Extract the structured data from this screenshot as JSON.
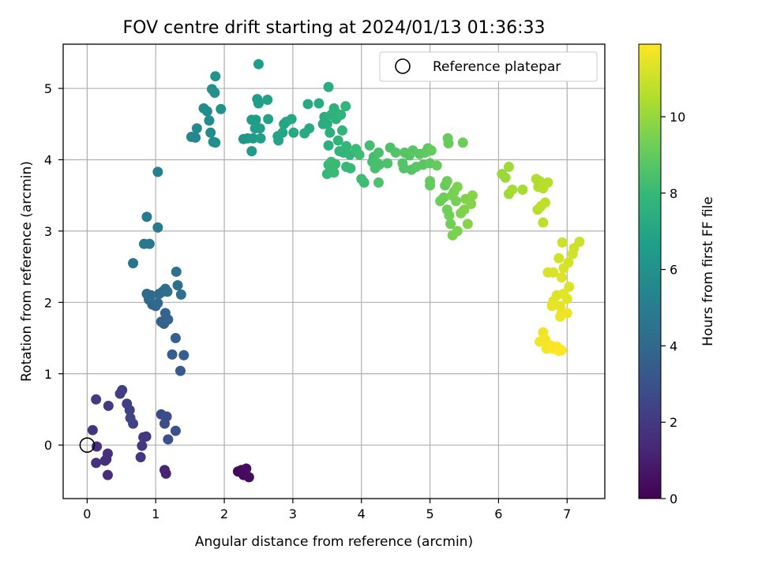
{
  "chart_data": {
    "type": "scatter",
    "title": "FOV centre drift starting at 2024/01/13 01:36:33",
    "xlabel": "Angular distance from reference (arcmin)",
    "ylabel": "Rotation from reference (arcmin)",
    "xlim": [
      -0.35,
      7.55
    ],
    "ylim": [
      -0.75,
      5.62
    ],
    "xticks": [
      0,
      1,
      2,
      3,
      4,
      5,
      6,
      7
    ],
    "yticks": [
      0,
      1,
      2,
      3,
      4,
      5
    ],
    "grid": true,
    "legend": {
      "position": "top-right",
      "entries": [
        "Reference platepar"
      ]
    },
    "reference_point": {
      "x": 0,
      "y": 0
    },
    "colorbar": {
      "label": "Hours from first FF file",
      "colormap": "viridis",
      "range": [
        0,
        11.9
      ],
      "ticks": [
        0,
        2,
        4,
        6,
        8,
        10
      ]
    },
    "colormap_stops": [
      "#440154",
      "#482878",
      "#3e4989",
      "#31688e",
      "#26828e",
      "#1f9e89",
      "#35b779",
      "#6ece58",
      "#b5de2b",
      "#fde725"
    ],
    "points": [
      {
        "x": 2.2,
        "y": -0.37,
        "h": 0.2
      },
      {
        "x": 2.25,
        "y": -0.35,
        "h": 0.3
      },
      {
        "x": 2.28,
        "y": -0.42,
        "h": 0.3
      },
      {
        "x": 2.32,
        "y": -0.33,
        "h": 0.4
      },
      {
        "x": 2.36,
        "y": -0.45,
        "h": 0.4
      },
      {
        "x": 1.13,
        "y": -0.35,
        "h": 1.2
      },
      {
        "x": 1.15,
        "y": -0.4,
        "h": 1.2
      },
      {
        "x": 0.3,
        "y": -0.42,
        "h": 1.5
      },
      {
        "x": 0.28,
        "y": -0.2,
        "h": 1.5
      },
      {
        "x": 0.3,
        "y": -0.12,
        "h": 1.6
      },
      {
        "x": 0.26,
        "y": -0.22,
        "h": 1.6
      },
      {
        "x": 0.13,
        "y": -0.25,
        "h": 1.7
      },
      {
        "x": 0.14,
        "y": -0.02,
        "h": 1.7
      },
      {
        "x": 0.08,
        "y": 0.21,
        "h": 1.8
      },
      {
        "x": 0.78,
        "y": -0.17,
        "h": 1.9
      },
      {
        "x": 0.8,
        "y": -0.01,
        "h": 1.9
      },
      {
        "x": 0.82,
        "y": 0.11,
        "h": 2.0
      },
      {
        "x": 0.86,
        "y": 0.12,
        "h": 2.0
      },
      {
        "x": 0.13,
        "y": 0.64,
        "h": 2.1
      },
      {
        "x": 0.31,
        "y": 0.55,
        "h": 2.1
      },
      {
        "x": 0.48,
        "y": 0.72,
        "h": 2.2
      },
      {
        "x": 0.51,
        "y": 0.77,
        "h": 2.2
      },
      {
        "x": 0.58,
        "y": 0.58,
        "h": 2.3
      },
      {
        "x": 0.62,
        "y": 0.49,
        "h": 2.3
      },
      {
        "x": 0.63,
        "y": 0.38,
        "h": 2.4
      },
      {
        "x": 0.67,
        "y": 0.3,
        "h": 2.4
      },
      {
        "x": 1.08,
        "y": 0.43,
        "h": 2.7
      },
      {
        "x": 1.16,
        "y": 0.4,
        "h": 2.8
      },
      {
        "x": 1.13,
        "y": 0.3,
        "h": 2.8
      },
      {
        "x": 1.18,
        "y": 0.08,
        "h": 2.9
      },
      {
        "x": 1.29,
        "y": 0.2,
        "h": 3.0
      },
      {
        "x": 1.36,
        "y": 1.04,
        "h": 3.4
      },
      {
        "x": 1.41,
        "y": 1.26,
        "h": 3.5
      },
      {
        "x": 1.24,
        "y": 1.27,
        "h": 3.5
      },
      {
        "x": 1.29,
        "y": 1.5,
        "h": 3.6
      },
      {
        "x": 1.08,
        "y": 1.73,
        "h": 3.7
      },
      {
        "x": 1.12,
        "y": 1.7,
        "h": 3.7
      },
      {
        "x": 1.18,
        "y": 1.76,
        "h": 3.8
      },
      {
        "x": 1.14,
        "y": 1.85,
        "h": 3.8
      },
      {
        "x": 1.0,
        "y": 1.95,
        "h": 3.9
      },
      {
        "x": 0.95,
        "y": 1.97,
        "h": 3.9
      },
      {
        "x": 1.03,
        "y": 1.99,
        "h": 4.0
      },
      {
        "x": 0.9,
        "y": 2.04,
        "h": 4.0
      },
      {
        "x": 0.87,
        "y": 2.12,
        "h": 4.0
      },
      {
        "x": 0.93,
        "y": 2.1,
        "h": 4.1
      },
      {
        "x": 1.05,
        "y": 2.12,
        "h": 4.1
      },
      {
        "x": 1.1,
        "y": 2.15,
        "h": 4.2
      },
      {
        "x": 1.14,
        "y": 2.19,
        "h": 4.2
      },
      {
        "x": 1.17,
        "y": 2.15,
        "h": 4.3
      },
      {
        "x": 1.37,
        "y": 2.11,
        "h": 4.3
      },
      {
        "x": 1.32,
        "y": 2.24,
        "h": 4.3
      },
      {
        "x": 1.3,
        "y": 2.43,
        "h": 4.4
      },
      {
        "x": 0.67,
        "y": 2.55,
        "h": 4.6
      },
      {
        "x": 0.83,
        "y": 2.82,
        "h": 4.8
      },
      {
        "x": 0.91,
        "y": 2.82,
        "h": 4.8
      },
      {
        "x": 1.03,
        "y": 3.05,
        "h": 4.9
      },
      {
        "x": 0.87,
        "y": 3.2,
        "h": 4.9
      },
      {
        "x": 1.03,
        "y": 3.83,
        "h": 5.2
      },
      {
        "x": 1.52,
        "y": 4.32,
        "h": 5.5
      },
      {
        "x": 1.58,
        "y": 4.31,
        "h": 5.5
      },
      {
        "x": 1.6,
        "y": 4.44,
        "h": 5.6
      },
      {
        "x": 1.7,
        "y": 4.72,
        "h": 5.7
      },
      {
        "x": 1.75,
        "y": 4.68,
        "h": 5.7
      },
      {
        "x": 1.78,
        "y": 4.55,
        "h": 5.8
      },
      {
        "x": 1.8,
        "y": 4.38,
        "h": 5.8
      },
      {
        "x": 1.84,
        "y": 4.25,
        "h": 5.9
      },
      {
        "x": 1.87,
        "y": 4.24,
        "h": 5.9
      },
      {
        "x": 1.82,
        "y": 4.99,
        "h": 6.0
      },
      {
        "x": 1.86,
        "y": 4.94,
        "h": 6.0
      },
      {
        "x": 1.87,
        "y": 5.17,
        "h": 6.1
      },
      {
        "x": 1.95,
        "y": 4.71,
        "h": 6.1
      },
      {
        "x": 2.28,
        "y": 4.29,
        "h": 6.3
      },
      {
        "x": 2.34,
        "y": 4.3,
        "h": 6.3
      },
      {
        "x": 2.4,
        "y": 4.12,
        "h": 6.4
      },
      {
        "x": 2.42,
        "y": 4.3,
        "h": 6.4
      },
      {
        "x": 2.45,
        "y": 4.44,
        "h": 6.5
      },
      {
        "x": 2.46,
        "y": 4.56,
        "h": 6.5
      },
      {
        "x": 2.4,
        "y": 4.56,
        "h": 6.5
      },
      {
        "x": 2.48,
        "y": 4.85,
        "h": 6.6
      },
      {
        "x": 2.5,
        "y": 4.79,
        "h": 6.6
      },
      {
        "x": 2.5,
        "y": 5.34,
        "h": 6.6
      },
      {
        "x": 2.52,
        "y": 4.44,
        "h": 6.7
      },
      {
        "x": 2.53,
        "y": 4.3,
        "h": 6.7
      },
      {
        "x": 2.63,
        "y": 4.84,
        "h": 6.8
      },
      {
        "x": 2.64,
        "y": 4.57,
        "h": 6.8
      },
      {
        "x": 2.78,
        "y": 4.33,
        "h": 6.9
      },
      {
        "x": 2.79,
        "y": 4.27,
        "h": 6.9
      },
      {
        "x": 2.85,
        "y": 4.38,
        "h": 7.0
      },
      {
        "x": 2.87,
        "y": 4.5,
        "h": 7.0
      },
      {
        "x": 2.9,
        "y": 4.53,
        "h": 7.0
      },
      {
        "x": 2.98,
        "y": 4.57,
        "h": 7.1
      },
      {
        "x": 3.01,
        "y": 4.38,
        "h": 7.1
      },
      {
        "x": 3.17,
        "y": 4.37,
        "h": 7.2
      },
      {
        "x": 3.24,
        "y": 4.44,
        "h": 7.2
      },
      {
        "x": 3.22,
        "y": 4.78,
        "h": 7.2
      },
      {
        "x": 3.38,
        "y": 4.79,
        "h": 7.3
      },
      {
        "x": 3.44,
        "y": 4.5,
        "h": 7.3
      },
      {
        "x": 3.46,
        "y": 4.6,
        "h": 7.4
      },
      {
        "x": 3.5,
        "y": 4.5,
        "h": 7.4
      },
      {
        "x": 3.52,
        "y": 5.02,
        "h": 7.4
      },
      {
        "x": 3.54,
        "y": 4.38,
        "h": 7.5
      },
      {
        "x": 3.52,
        "y": 4.2,
        "h": 7.5
      },
      {
        "x": 3.56,
        "y": 4.63,
        "h": 7.5
      },
      {
        "x": 3.6,
        "y": 4.72,
        "h": 7.6
      },
      {
        "x": 3.62,
        "y": 4.67,
        "h": 7.6
      },
      {
        "x": 3.63,
        "y": 4.57,
        "h": 7.6
      },
      {
        "x": 3.66,
        "y": 4.27,
        "h": 7.7
      },
      {
        "x": 3.7,
        "y": 4.63,
        "h": 7.7
      },
      {
        "x": 3.72,
        "y": 4.41,
        "h": 7.7
      },
      {
        "x": 3.77,
        "y": 4.75,
        "h": 7.8
      },
      {
        "x": 3.68,
        "y": 4.12,
        "h": 7.8
      },
      {
        "x": 3.74,
        "y": 4.1,
        "h": 7.8
      },
      {
        "x": 3.78,
        "y": 4.19,
        "h": 7.9
      },
      {
        "x": 3.83,
        "y": 4.07,
        "h": 7.9
      },
      {
        "x": 3.78,
        "y": 3.9,
        "h": 7.9
      },
      {
        "x": 3.84,
        "y": 3.88,
        "h": 8.0
      },
      {
        "x": 3.52,
        "y": 3.93,
        "h": 8.0
      },
      {
        "x": 3.5,
        "y": 3.8,
        "h": 8.0
      },
      {
        "x": 3.56,
        "y": 3.97,
        "h": 8.1
      },
      {
        "x": 3.6,
        "y": 3.82,
        "h": 8.1
      },
      {
        "x": 3.62,
        "y": 3.94,
        "h": 8.1
      },
      {
        "x": 3.92,
        "y": 4.15,
        "h": 8.1
      },
      {
        "x": 3.97,
        "y": 4.07,
        "h": 8.2
      },
      {
        "x": 4.0,
        "y": 3.73,
        "h": 8.2
      },
      {
        "x": 4.04,
        "y": 3.68,
        "h": 8.2
      },
      {
        "x": 4.12,
        "y": 4.2,
        "h": 8.3
      },
      {
        "x": 4.16,
        "y": 3.97,
        "h": 8.3
      },
      {
        "x": 4.18,
        "y": 4.04,
        "h": 8.3
      },
      {
        "x": 4.2,
        "y": 3.88,
        "h": 8.4
      },
      {
        "x": 4.22,
        "y": 3.96,
        "h": 8.4
      },
      {
        "x": 4.25,
        "y": 4.1,
        "h": 8.4
      },
      {
        "x": 4.26,
        "y": 3.93,
        "h": 8.4
      },
      {
        "x": 4.25,
        "y": 3.68,
        "h": 8.5
      },
      {
        "x": 4.38,
        "y": 3.95,
        "h": 8.5
      },
      {
        "x": 4.42,
        "y": 4.17,
        "h": 8.5
      },
      {
        "x": 4.5,
        "y": 4.1,
        "h": 8.6
      },
      {
        "x": 4.6,
        "y": 3.95,
        "h": 8.6
      },
      {
        "x": 4.62,
        "y": 3.88,
        "h": 8.6
      },
      {
        "x": 4.63,
        "y": 4.1,
        "h": 8.7
      },
      {
        "x": 4.7,
        "y": 4.06,
        "h": 8.7
      },
      {
        "x": 4.73,
        "y": 3.86,
        "h": 8.7
      },
      {
        "x": 4.75,
        "y": 4.13,
        "h": 8.8
      },
      {
        "x": 4.8,
        "y": 3.9,
        "h": 8.8
      },
      {
        "x": 4.85,
        "y": 4.08,
        "h": 8.8
      },
      {
        "x": 4.9,
        "y": 3.93,
        "h": 8.8
      },
      {
        "x": 4.93,
        "y": 4.1,
        "h": 8.9
      },
      {
        "x": 4.97,
        "y": 4.16,
        "h": 8.9
      },
      {
        "x": 5.0,
        "y": 3.95,
        "h": 8.9
      },
      {
        "x": 5.02,
        "y": 4.13,
        "h": 9.0
      },
      {
        "x": 5.0,
        "y": 3.7,
        "h": 9.0
      },
      {
        "x": 5.0,
        "y": 3.64,
        "h": 9.0
      },
      {
        "x": 5.1,
        "y": 3.92,
        "h": 9.1
      },
      {
        "x": 5.22,
        "y": 3.64,
        "h": 9.1
      },
      {
        "x": 5.25,
        "y": 3.7,
        "h": 9.2
      },
      {
        "x": 5.15,
        "y": 3.42,
        "h": 9.2
      },
      {
        "x": 5.2,
        "y": 3.47,
        "h": 9.2
      },
      {
        "x": 5.25,
        "y": 3.3,
        "h": 9.3
      },
      {
        "x": 5.28,
        "y": 3.22,
        "h": 9.3
      },
      {
        "x": 5.3,
        "y": 3.1,
        "h": 9.3
      },
      {
        "x": 5.32,
        "y": 3.5,
        "h": 9.4
      },
      {
        "x": 5.35,
        "y": 3.55,
        "h": 9.4
      },
      {
        "x": 5.38,
        "y": 3.42,
        "h": 9.4
      },
      {
        "x": 5.4,
        "y": 3.62,
        "h": 9.5
      },
      {
        "x": 5.33,
        "y": 2.94,
        "h": 9.5
      },
      {
        "x": 5.4,
        "y": 3.0,
        "h": 9.5
      },
      {
        "x": 5.45,
        "y": 3.25,
        "h": 9.6
      },
      {
        "x": 5.5,
        "y": 3.3,
        "h": 9.6
      },
      {
        "x": 5.52,
        "y": 3.45,
        "h": 9.6
      },
      {
        "x": 5.55,
        "y": 3.1,
        "h": 9.7
      },
      {
        "x": 5.6,
        "y": 3.38,
        "h": 9.7
      },
      {
        "x": 5.62,
        "y": 3.5,
        "h": 9.7
      },
      {
        "x": 5.26,
        "y": 4.3,
        "h": 9.1
      },
      {
        "x": 5.27,
        "y": 4.23,
        "h": 9.1
      },
      {
        "x": 5.48,
        "y": 4.24,
        "h": 9.2
      },
      {
        "x": 6.05,
        "y": 3.8,
        "h": 10.1
      },
      {
        "x": 6.1,
        "y": 3.75,
        "h": 10.1
      },
      {
        "x": 6.15,
        "y": 3.9,
        "h": 10.2
      },
      {
        "x": 6.15,
        "y": 3.52,
        "h": 10.2
      },
      {
        "x": 6.2,
        "y": 3.58,
        "h": 10.3
      },
      {
        "x": 6.35,
        "y": 3.58,
        "h": 10.3
      },
      {
        "x": 6.55,
        "y": 3.73,
        "h": 10.5
      },
      {
        "x": 6.6,
        "y": 3.7,
        "h": 10.5
      },
      {
        "x": 6.58,
        "y": 3.62,
        "h": 10.5
      },
      {
        "x": 6.65,
        "y": 3.6,
        "h": 10.6
      },
      {
        "x": 6.72,
        "y": 3.68,
        "h": 10.6
      },
      {
        "x": 6.57,
        "y": 3.3,
        "h": 10.6
      },
      {
        "x": 6.62,
        "y": 3.35,
        "h": 10.7
      },
      {
        "x": 6.68,
        "y": 3.4,
        "h": 10.7
      },
      {
        "x": 6.65,
        "y": 3.12,
        "h": 10.7
      },
      {
        "x": 6.93,
        "y": 2.84,
        "h": 11.0
      },
      {
        "x": 7.1,
        "y": 2.76,
        "h": 11.0
      },
      {
        "x": 7.18,
        "y": 2.85,
        "h": 11.0
      },
      {
        "x": 7.08,
        "y": 2.68,
        "h": 11.1
      },
      {
        "x": 6.88,
        "y": 2.62,
        "h": 11.1
      },
      {
        "x": 7.02,
        "y": 2.56,
        "h": 11.1
      },
      {
        "x": 6.95,
        "y": 2.48,
        "h": 11.2
      },
      {
        "x": 6.72,
        "y": 2.42,
        "h": 11.2
      },
      {
        "x": 6.8,
        "y": 2.42,
        "h": 11.2
      },
      {
        "x": 6.92,
        "y": 2.35,
        "h": 11.3
      },
      {
        "x": 7.03,
        "y": 2.22,
        "h": 11.3
      },
      {
        "x": 6.85,
        "y": 2.1,
        "h": 11.3
      },
      {
        "x": 6.95,
        "y": 2.12,
        "h": 11.4
      },
      {
        "x": 7.0,
        "y": 2.05,
        "h": 11.4
      },
      {
        "x": 6.8,
        "y": 2.02,
        "h": 11.4
      },
      {
        "x": 6.78,
        "y": 1.95,
        "h": 11.5
      },
      {
        "x": 6.9,
        "y": 1.95,
        "h": 11.5
      },
      {
        "x": 6.92,
        "y": 1.85,
        "h": 11.5
      },
      {
        "x": 7.0,
        "y": 1.85,
        "h": 11.6
      },
      {
        "x": 6.9,
        "y": 1.8,
        "h": 11.6
      },
      {
        "x": 6.65,
        "y": 1.58,
        "h": 11.6
      },
      {
        "x": 6.6,
        "y": 1.45,
        "h": 11.7
      },
      {
        "x": 6.68,
        "y": 1.48,
        "h": 11.7
      },
      {
        "x": 6.7,
        "y": 1.35,
        "h": 11.7
      },
      {
        "x": 6.75,
        "y": 1.4,
        "h": 11.8
      },
      {
        "x": 6.8,
        "y": 1.35,
        "h": 11.8
      },
      {
        "x": 6.85,
        "y": 1.38,
        "h": 11.8
      },
      {
        "x": 6.88,
        "y": 1.32,
        "h": 11.9
      },
      {
        "x": 6.92,
        "y": 1.33,
        "h": 11.9
      }
    ]
  }
}
